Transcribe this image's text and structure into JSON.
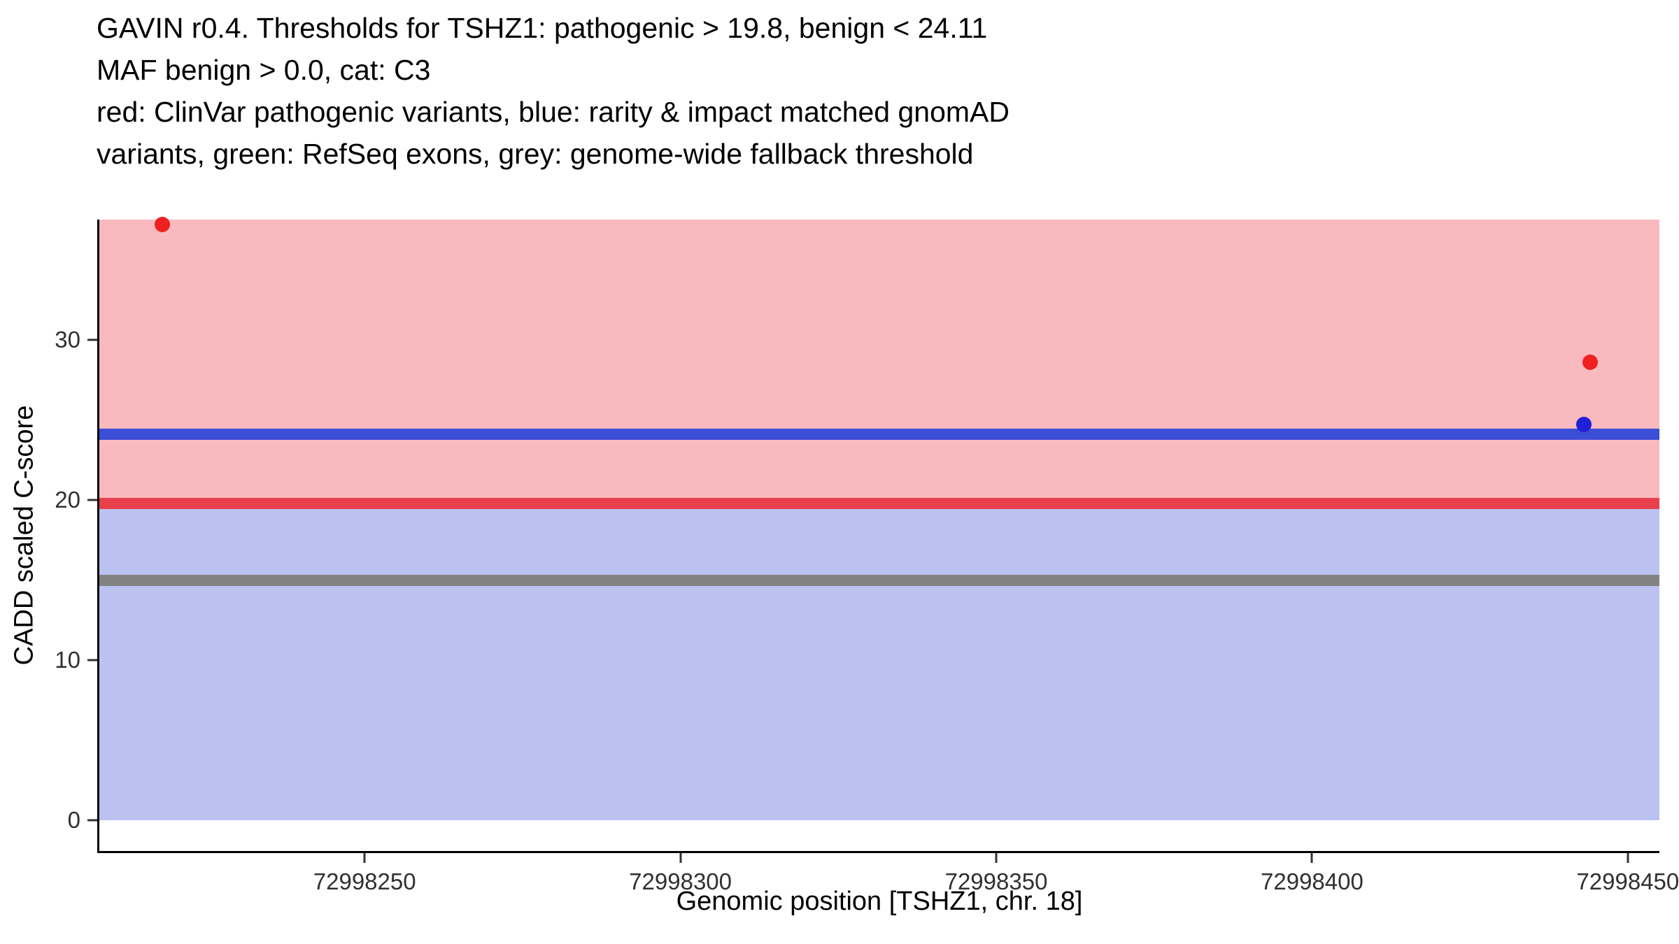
{
  "title": {
    "lines": [
      "GAVIN r0.4. Thresholds for TSHZ1: pathogenic > 19.8, benign < 24.11",
      "MAF benign > 0.0, cat: C3",
      "red: ClinVar pathogenic variants, blue: rarity & impact matched gnomAD",
      "variants, green: RefSeq exons, grey: genome-wide fallback threshold"
    ]
  },
  "chart_data": {
    "type": "scatter",
    "title": "GAVIN r0.4. Thresholds for TSHZ1: pathogenic > 19.8, benign < 24.11 MAF benign > 0.0, cat: C3",
    "xlabel": "Genomic position [TSHZ1, chr. 18]",
    "ylabel": "CADD scaled C-score",
    "x_range": [
      72998208,
      72998455
    ],
    "y_range": [
      -1.9,
      37.5
    ],
    "grid": false,
    "legend": "none",
    "x_ticks": [
      {
        "value": 72998250,
        "label": "72998250"
      },
      {
        "value": 72998300,
        "label": "72998300"
      },
      {
        "value": 72998350,
        "label": "72998350"
      },
      {
        "value": 72998400,
        "label": "72998400"
      },
      {
        "value": 72998450,
        "label": "72998450"
      }
    ],
    "y_ticks": [
      {
        "value": 0,
        "label": "0"
      },
      {
        "value": 10,
        "label": "10"
      },
      {
        "value": 20,
        "label": "20"
      },
      {
        "value": 30,
        "label": "30"
      }
    ],
    "bands": [
      {
        "name": "pathogenic-region-band",
        "y0": 19.8,
        "y1": 37.5,
        "color": "#F9BABF"
      },
      {
        "name": "benign-region-band",
        "y0": 0,
        "y1": 19.8,
        "color": "#BBC2F0"
      }
    ],
    "hlines": [
      {
        "name": "benign-threshold-line",
        "y": 24.11,
        "color": "#3A4ED6",
        "thickness_px": 16
      },
      {
        "name": "pathogenic-threshold-line",
        "y": 19.8,
        "color": "#E8414D",
        "thickness_px": 16
      },
      {
        "name": "fallback-threshold-line",
        "y": 15,
        "color": "#828282",
        "thickness_px": 16
      }
    ],
    "series": [
      {
        "name": "ClinVar pathogenic variants",
        "marker_name": "clinvar-pathogenic-point",
        "color": "#EE2020",
        "points": [
          {
            "x": 72998218,
            "y": 37.2
          },
          {
            "x": 72998444,
            "y": 28.6
          }
        ]
      },
      {
        "name": "rarity & impact matched gnomAD variants",
        "marker_name": "gnomad-matched-point",
        "color": "#2020D8",
        "points": [
          {
            "x": 72998443,
            "y": 24.7
          }
        ]
      }
    ],
    "thresholds": {
      "pathogenic_gt": 19.8,
      "benign_lt": 24.11,
      "maf_benign_gt": 0.0,
      "category": "C3",
      "genome_wide_fallback": 15
    }
  }
}
